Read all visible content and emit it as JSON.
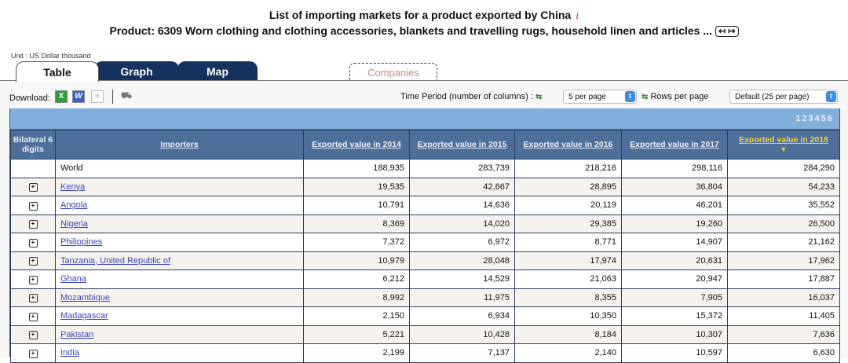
{
  "header": {
    "title": "List of importing markets for a product exported by China",
    "info_icon": "i",
    "product": "Product: 6309 Worn clothing and clothing accessories, blankets and travelling rugs, household linen and articles ...",
    "expand_button": "↤ ↦"
  },
  "unit": "Unit : US Dollar thousand",
  "tabs": [
    {
      "label": "Table",
      "active": true
    },
    {
      "label": "Graph",
      "active": false
    },
    {
      "label": "Map",
      "active": false
    },
    {
      "label": "Companies",
      "active": false
    }
  ],
  "toolbar": {
    "download_label": "Download:",
    "icons": [
      "excel-icon",
      "word-icon",
      "text-icon",
      "other-icon"
    ],
    "time_period_label": "Time Period (number of columns) :",
    "time_period_value": "5 per page",
    "rows_label": "Rows per page",
    "rows_value": "Default (25 per page)"
  },
  "pager": [
    "1",
    "2",
    "3",
    "4",
    "5",
    "6"
  ],
  "table": {
    "columns": [
      "Bilateral 6 digits",
      "Importers",
      "Exported value in 2014",
      "Exported value in 2015",
      "Exported value in 2016",
      "Exported value in 2017",
      "Exported value in 2018"
    ],
    "sorted_column_arrow": "▼",
    "rows": [
      {
        "importer": "World",
        "expandable": false,
        "v2014": "188,935",
        "v2015": "283,739",
        "v2016": "218,216",
        "v2017": "298,116",
        "v2018": "284,290"
      },
      {
        "importer": "Kenya",
        "expandable": true,
        "v2014": "19,535",
        "v2015": "42,667",
        "v2016": "28,895",
        "v2017": "36,804",
        "v2018": "54,233"
      },
      {
        "importer": "Angola",
        "expandable": true,
        "v2014": "10,791",
        "v2015": "14,636",
        "v2016": "20,119",
        "v2017": "46,201",
        "v2018": "35,552"
      },
      {
        "importer": "Nigeria",
        "expandable": true,
        "v2014": "8,369",
        "v2015": "14,020",
        "v2016": "29,385",
        "v2017": "19,260",
        "v2018": "26,500"
      },
      {
        "importer": "Philippines",
        "expandable": true,
        "v2014": "7,372",
        "v2015": "6,972",
        "v2016": "8,771",
        "v2017": "14,907",
        "v2018": "21,162"
      },
      {
        "importer": "Tanzania, United Republic of",
        "expandable": true,
        "v2014": "10,979",
        "v2015": "28,048",
        "v2016": "17,974",
        "v2017": "20,631",
        "v2018": "17,962"
      },
      {
        "importer": "Ghana",
        "expandable": true,
        "v2014": "6,212",
        "v2015": "14,529",
        "v2016": "21,063",
        "v2017": "20,947",
        "v2018": "17,887"
      },
      {
        "importer": "Mozambique",
        "expandable": true,
        "v2014": "8,992",
        "v2015": "11,975",
        "v2016": "8,355",
        "v2017": "7,905",
        "v2018": "16,037"
      },
      {
        "importer": "Madagascar",
        "expandable": true,
        "v2014": "2,150",
        "v2015": "6,934",
        "v2016": "10,350",
        "v2017": "15,372",
        "v2018": "11,405"
      },
      {
        "importer": "Pakistan",
        "expandable": true,
        "v2014": "5,221",
        "v2015": "10,428",
        "v2016": "8,184",
        "v2017": "10,307",
        "v2018": "7,636"
      },
      {
        "importer": "India",
        "expandable": true,
        "v2014": "2,199",
        "v2015": "7,137",
        "v2016": "2,140",
        "v2017": "10,597",
        "v2018": "6,630"
      }
    ]
  },
  "colors": {
    "header_bg": "#4f6f9b",
    "pager_bg": "#82aedc",
    "tab_dark": "#15325e",
    "sorted_header": "#f2d23a",
    "link": "#3b45b8"
  }
}
